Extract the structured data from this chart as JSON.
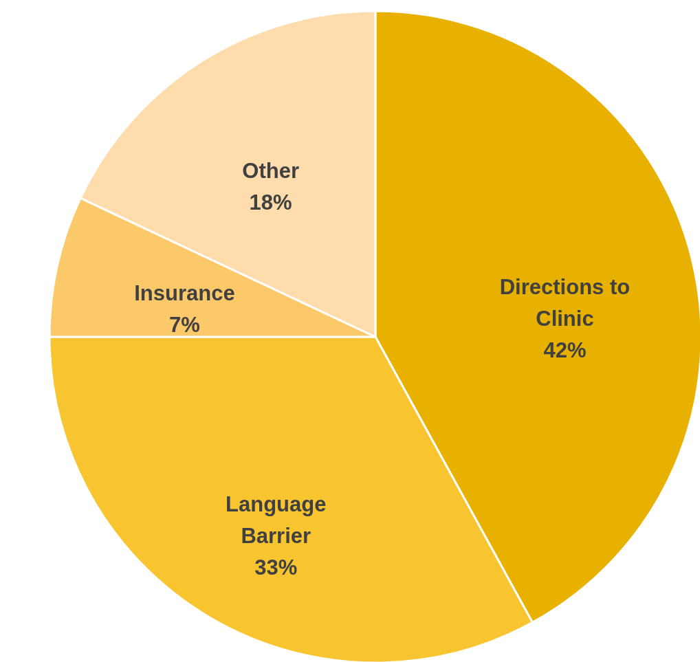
{
  "chart_data": {
    "type": "pie",
    "categories": [
      "Directions to Clinic",
      "Language Barrier",
      "Insurance",
      "Other"
    ],
    "values": [
      42,
      33,
      7,
      18
    ],
    "colors": [
      "#e8b100",
      "#f8c531",
      "#fcc96a",
      "#fedcab"
    ],
    "value_labels": [
      "42%",
      "33%",
      "7%",
      "18%"
    ],
    "legend": false
  }
}
